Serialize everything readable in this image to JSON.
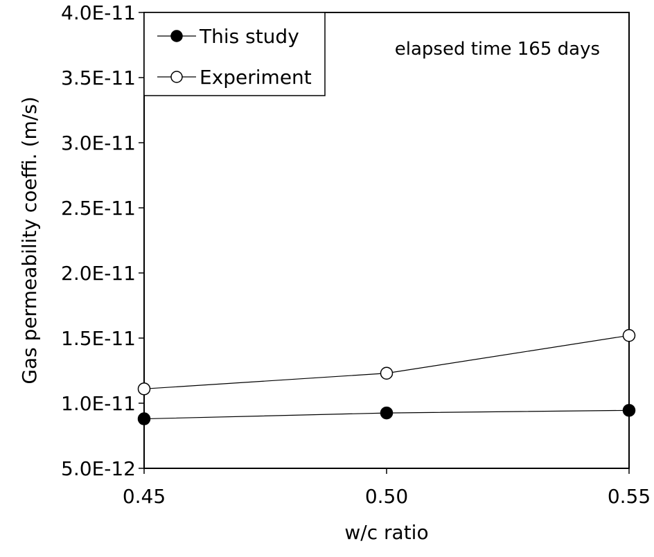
{
  "chart_data": {
    "type": "line",
    "x": [
      0.45,
      0.5,
      0.55
    ],
    "x_tick_labels": [
      "0.45",
      "0.50",
      "0.55"
    ],
    "xlim": [
      0.45,
      0.55
    ],
    "ylim": [
      5e-12,
      4e-11
    ],
    "y_ticks": [
      5e-12,
      1e-11,
      1.5e-11,
      2e-11,
      2.5e-11,
      3e-11,
      3.5e-11,
      4e-11
    ],
    "y_tick_labels": [
      "5.0E-12",
      "1.0E-11",
      "1.5E-11",
      "2.0E-11",
      "2.5E-11",
      "3.0E-11",
      "3.5E-11",
      "4.0E-11"
    ],
    "xlabel": "w/c ratio",
    "ylabel": "Gas permeability coeffi. (m/s)",
    "annotation": "elapsed time 165 days",
    "grid": false,
    "legend_position": "top-left",
    "series": [
      {
        "name": "This study",
        "marker": "filled-circle",
        "values": [
          8.8e-12,
          9.25e-12,
          9.45e-12
        ]
      },
      {
        "name": "Experiment",
        "marker": "open-circle",
        "values": [
          1.11e-11,
          1.23e-11,
          1.52e-11
        ]
      }
    ]
  }
}
